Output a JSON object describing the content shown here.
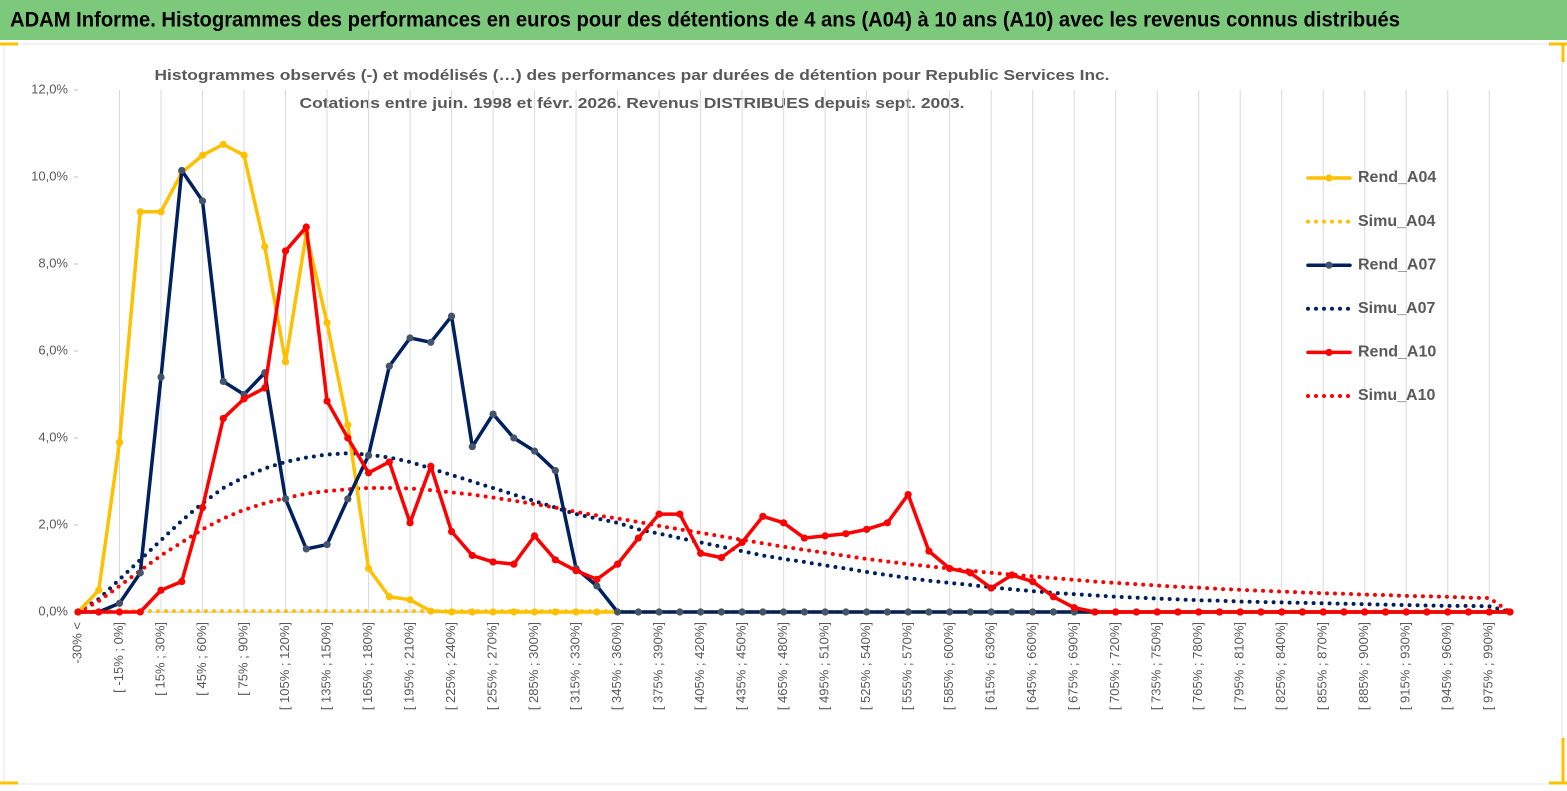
{
  "header": "ADAM Informe. Histogrammes des performances en euros pour des détentions de 4 ans (A04) à 10 ans (A10) avec les revenus connus distribués",
  "chart_data": {
    "type": "line",
    "subtitle": [
      "Histogrammes observés (-) et modélisés (…) des performances par durées de détention pour Republic Services  Inc.",
      "Cotations entre juin. 1998 et févr. 2026. Revenus DISTRIBUES depuis sept. 2003."
    ],
    "categories": [
      "-30% <",
      null,
      "[ -15% ; 0%]",
      null,
      "[ 15% ; 30%]",
      null,
      "[ 45% ; 60%]",
      null,
      "[ 75% ; 90%]",
      null,
      "[ 105% ; 120%]",
      null,
      "[ 135% ; 150%]",
      null,
      "[ 165% ; 180%]",
      null,
      "[ 195% ; 210%]",
      null,
      "[ 225% ; 240%]",
      null,
      "[ 255% ; 270%]",
      null,
      "[ 285% ; 300%]",
      null,
      "[ 315% ; 330%]",
      null,
      "[ 345% ; 360%]",
      null,
      "[ 375% ; 390%]",
      null,
      "[ 405% ; 420%]",
      null,
      "[ 435% ; 450%]",
      null,
      "[ 465% ; 480%]",
      null,
      "[ 495% ; 510%]",
      null,
      "[ 525% ; 540%]",
      null,
      "[ 555% ; 570%]",
      null,
      "[ 585% ; 600%]",
      null,
      "[ 615% ; 630%]",
      null,
      "[ 645% ; 660%]",
      null,
      "[ 675% ; 690%]",
      null,
      "[ 705% ; 720%]",
      null,
      "[ 735% ; 750%]",
      null,
      "[ 765% ; 780%]",
      null,
      "[ 795% ; 810%]",
      null,
      "[ 825% ; 840%]",
      null,
      "[ 855% ; 870%]",
      null,
      "[ 885% ; 900%]",
      null,
      "[ 915% ; 930%]",
      null,
      "[ 945% ; 960%]",
      null,
      "[ 975% ; 990%]",
      null
    ],
    "ylim": [
      0,
      12
    ],
    "yticks": [
      {
        "value": 0,
        "label": "0,0%"
      },
      {
        "value": 2,
        "label": "2,0%"
      },
      {
        "value": 4,
        "label": "4,0%"
      },
      {
        "value": 6,
        "label": "6,0%"
      },
      {
        "value": 8,
        "label": "8,0%"
      },
      {
        "value": 10,
        "label": "10,0%"
      },
      {
        "value": 12,
        "label": "12,0%"
      }
    ],
    "grid": true,
    "legend": "right",
    "series": [
      {
        "name": "Rend_A04",
        "color": "#FFC000",
        "style": "solid",
        "values": [
          0,
          0.5,
          3.9,
          9.2,
          9.2,
          10.1,
          10.5,
          10.75,
          10.5,
          8.4,
          5.75,
          8.7,
          6.65,
          4.3,
          1.0,
          0.35,
          0.28,
          0.02,
          0,
          0,
          0,
          0,
          0,
          0,
          0,
          0,
          0,
          0,
          0,
          0,
          0,
          0,
          0,
          0,
          0,
          0,
          0,
          0,
          0,
          0,
          0,
          0,
          0,
          0,
          0,
          0,
          0,
          0,
          0,
          0,
          0,
          0,
          0,
          0,
          0,
          0,
          0,
          0,
          0,
          0,
          0,
          0,
          0,
          0,
          0,
          0,
          0,
          0,
          0,
          0
        ]
      },
      {
        "name": "Simu_A04",
        "color": "#FFC000",
        "style": "dotted",
        "values": [
          0,
          0.02,
          0.02,
          0.02,
          0.02,
          0.02,
          0.02,
          0.02,
          0.02,
          0.02,
          0.02,
          0.02,
          0.02,
          0.02,
          0.02,
          0.02,
          0.02,
          0.02,
          0.02,
          0.02,
          0.02,
          0.02,
          0.02,
          0.02,
          0.02,
          0.02,
          0.02,
          0,
          0,
          0,
          0,
          0,
          0,
          0,
          0,
          0,
          0,
          0,
          0,
          0,
          0,
          0,
          0,
          0,
          0,
          0,
          0,
          0,
          0,
          0,
          0,
          0,
          0,
          0,
          0,
          0,
          0,
          0,
          0,
          0,
          0,
          0,
          0,
          0,
          0,
          0,
          0,
          0,
          0,
          0
        ]
      },
      {
        "name": "Rend_A07",
        "color": "#002060",
        "marker_color": "#44546A",
        "style": "solid",
        "values": [
          0,
          0,
          0.2,
          0.9,
          5.4,
          10.15,
          9.45,
          5.3,
          5.0,
          5.5,
          2.6,
          1.45,
          1.55,
          2.6,
          3.6,
          5.65,
          6.3,
          6.2,
          6.8,
          3.8,
          4.55,
          4.0,
          3.7,
          3.25,
          1.0,
          0.6,
          0,
          0,
          0,
          0,
          0,
          0,
          0,
          0,
          0,
          0,
          0,
          0,
          0,
          0,
          0,
          0,
          0,
          0,
          0,
          0,
          0,
          0,
          0,
          0,
          0,
          0,
          0,
          0,
          0,
          0,
          0,
          0,
          0,
          0,
          0,
          0,
          0,
          0,
          0,
          0,
          0,
          0,
          0,
          0
        ]
      },
      {
        "name": "Simu_A07",
        "color": "#002060",
        "style": "dotted",
        "values": [
          0,
          0.3,
          0.75,
          1.2,
          1.65,
          2.1,
          2.5,
          2.85,
          3.1,
          3.3,
          3.45,
          3.55,
          3.62,
          3.65,
          3.62,
          3.55,
          3.45,
          3.3,
          3.15,
          3.0,
          2.85,
          2.7,
          2.55,
          2.4,
          2.25,
          2.15,
          2.05,
          1.9,
          1.8,
          1.7,
          1.6,
          1.5,
          1.4,
          1.3,
          1.22,
          1.15,
          1.07,
          1.0,
          0.92,
          0.85,
          0.78,
          0.72,
          0.67,
          0.62,
          0.57,
          0.52,
          0.48,
          0.44,
          0.41,
          0.38,
          0.35,
          0.33,
          0.31,
          0.29,
          0.27,
          0.26,
          0.24,
          0.23,
          0.22,
          0.21,
          0.2,
          0.19,
          0.18,
          0.17,
          0.16,
          0.15,
          0.14,
          0.14,
          0.13,
          0
        ]
      },
      {
        "name": "Rend_A10",
        "color": "#FF0000",
        "style": "solid",
        "values": [
          0,
          0,
          0,
          0,
          0.5,
          0.7,
          2.4,
          4.45,
          4.9,
          5.15,
          8.3,
          8.85,
          4.85,
          4.0,
          3.2,
          3.45,
          2.05,
          3.35,
          1.85,
          1.3,
          1.15,
          1.1,
          1.75,
          1.2,
          0.95,
          0.75,
          1.1,
          1.7,
          2.25,
          2.25,
          1.35,
          1.25,
          1.6,
          2.2,
          2.05,
          1.7,
          1.75,
          1.8,
          1.9,
          2.05,
          2.7,
          1.4,
          1.0,
          0.9,
          0.55,
          0.85,
          0.7,
          0.35,
          0.1,
          0,
          0,
          0,
          0,
          0,
          0,
          0,
          0,
          0,
          0,
          0,
          0,
          0,
          0,
          0,
          0,
          0,
          0,
          0,
          0,
          0
        ]
      },
      {
        "name": "Simu_A10",
        "color": "#FF0000",
        "style": "dotted",
        "values": [
          0,
          0.25,
          0.6,
          0.95,
          1.3,
          1.6,
          1.9,
          2.15,
          2.35,
          2.5,
          2.62,
          2.72,
          2.78,
          2.82,
          2.85,
          2.85,
          2.84,
          2.8,
          2.75,
          2.7,
          2.63,
          2.56,
          2.48,
          2.4,
          2.3,
          2.22,
          2.15,
          2.07,
          1.98,
          1.9,
          1.82,
          1.74,
          1.66,
          1.58,
          1.5,
          1.43,
          1.36,
          1.29,
          1.22,
          1.16,
          1.1,
          1.05,
          1.0,
          0.95,
          0.9,
          0.86,
          0.82,
          0.78,
          0.74,
          0.7,
          0.67,
          0.64,
          0.61,
          0.58,
          0.56,
          0.53,
          0.51,
          0.49,
          0.47,
          0.45,
          0.43,
          0.42,
          0.4,
          0.39,
          0.37,
          0.36,
          0.35,
          0.33,
          0.32,
          0
        ]
      }
    ]
  }
}
